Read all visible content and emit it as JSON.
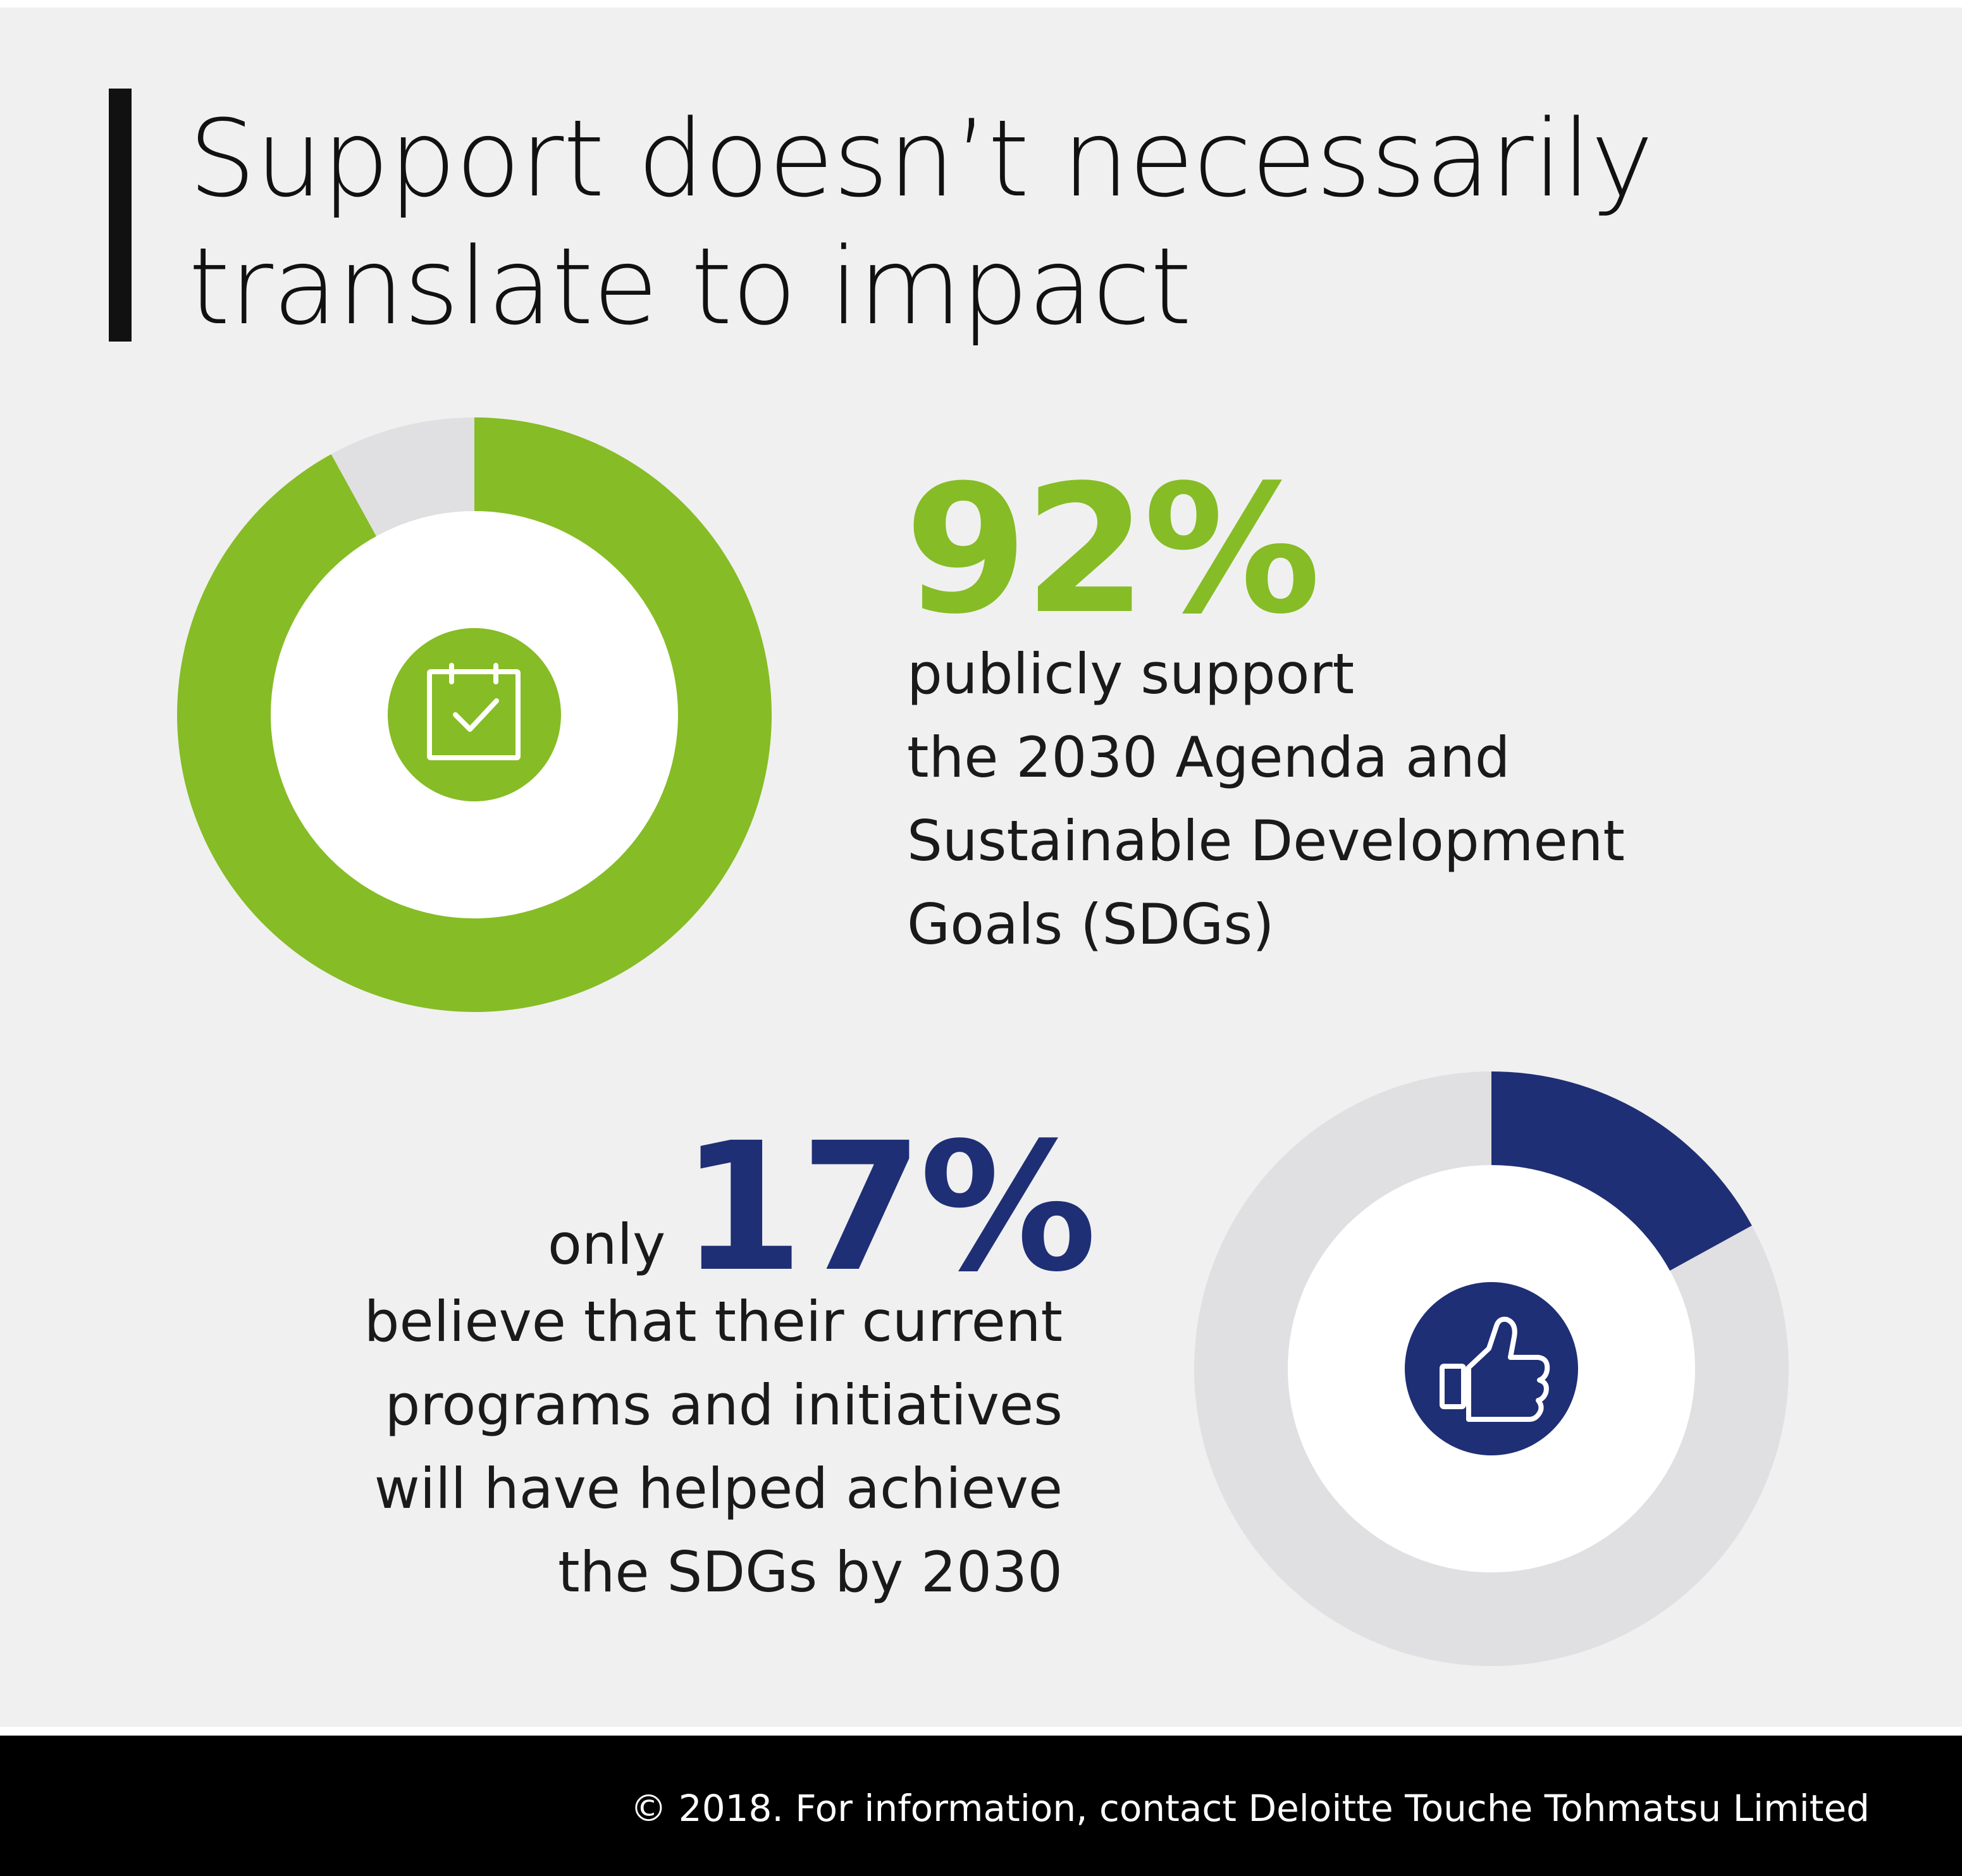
{
  "title_lines": [
    "Support doesn’t necessarily",
    "translate to impact"
  ],
  "chart_data": [
    {
      "type": "pie",
      "value": 92,
      "values": [
        92,
        8
      ],
      "label": "92%",
      "description_lines": [
        "publicly support",
        "the 2030 Agenda and",
        "Sustainable Development",
        "Goals (SDGs)"
      ],
      "colors": {
        "filled": "#86bc25",
        "remainder": "#e0e0e2",
        "icon_bg": "#86bc25"
      },
      "icon": "calendar-check-icon"
    },
    {
      "type": "pie",
      "value": 17,
      "values": [
        17,
        83
      ],
      "prefix": "only",
      "label": "17%",
      "description_lines": [
        "believe that their current",
        "programs and initiatives",
        "will have helped achieve",
        "the SDGs by 2030"
      ],
      "colors": {
        "filled": "#1f2f75",
        "remainder": "#e0e0e2",
        "icon_bg": "#1f2f75"
      },
      "icon": "thumbs-up-icon"
    }
  ],
  "footer": {
    "text": "© 2018. For information, contact Deloitte Touche Tohmatsu Limited"
  }
}
